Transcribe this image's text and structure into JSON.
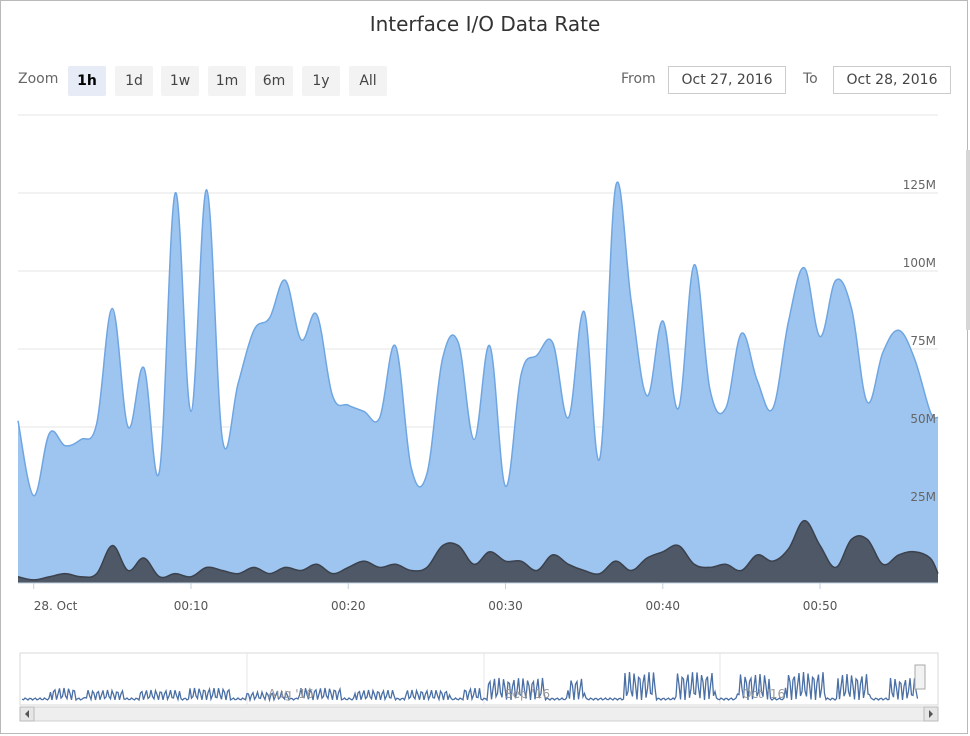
{
  "title": "Interface I/O Data Rate",
  "zoom": {
    "label": "Zoom",
    "buttons": [
      "1h",
      "1d",
      "1w",
      "1m",
      "6m",
      "1y",
      "All"
    ],
    "selected": "1h"
  },
  "range": {
    "from_label": "From",
    "from_value": "Oct 27, 2016",
    "to_label": "To",
    "to_value": "Oct 28, 2016"
  },
  "colors": {
    "in_fill": "#9ec5ef",
    "in_line": "#6fa6e2",
    "out_fill": "#4f5866",
    "out_line": "#3b414d",
    "navigator_line": "#4a6fa5"
  },
  "navigator": {
    "labels": [
      "Aug '16",
      "Sep '16",
      "Oct '16"
    ]
  },
  "chart_data": {
    "type": "area",
    "xlabel": "",
    "ylabel": "",
    "x_unit": "minutes",
    "xlim": [
      -1,
      57.5
    ],
    "ylim": [
      0,
      150
    ],
    "y_unit": "M",
    "yticks": [
      25,
      50,
      75,
      100,
      125
    ],
    "ytick_labels": [
      "25M",
      "50M",
      "75M",
      "100M",
      "125M"
    ],
    "xticks": [
      0,
      10,
      20,
      30,
      40,
      50
    ],
    "xtick_labels": [
      "28. Oct",
      "00:10",
      "00:20",
      "00:30",
      "00:40",
      "00:50"
    ],
    "grid": true,
    "series": [
      {
        "x": [
          -1,
          0,
          1,
          2,
          3,
          4,
          5,
          6,
          7,
          8,
          9,
          10,
          11,
          12,
          13,
          14,
          15,
          16,
          17,
          18,
          19,
          20,
          21,
          22,
          23,
          24,
          25,
          26,
          27,
          28,
          29,
          30,
          31,
          32,
          33,
          34,
          35,
          36,
          37,
          38,
          39,
          40,
          41,
          42,
          43,
          44,
          45,
          46,
          47,
          48,
          49,
          50,
          51,
          52,
          53,
          54,
          55,
          56,
          57,
          57.5
        ],
        "values": [
          52,
          28,
          48,
          44,
          46,
          51,
          88,
          50,
          69,
          36,
          125,
          55,
          126,
          46,
          64,
          81,
          85,
          97,
          78,
          86,
          60,
          57,
          55,
          53,
          76,
          37,
          35,
          72,
          77,
          46,
          76,
          31,
          67,
          73,
          77,
          53,
          87,
          40,
          127,
          90,
          60,
          84,
          56,
          102,
          62,
          56,
          80,
          65,
          56,
          84,
          101,
          79,
          97,
          88,
          58,
          74,
          81,
          72,
          55,
          53
        ]
      },
      {
        "x": [
          -1,
          0,
          1,
          2,
          3,
          4,
          5,
          6,
          7,
          8,
          9,
          10,
          11,
          12,
          13,
          14,
          15,
          16,
          17,
          18,
          19,
          20,
          21,
          22,
          23,
          24,
          25,
          26,
          27,
          28,
          29,
          30,
          31,
          32,
          33,
          34,
          35,
          36,
          37,
          38,
          39,
          40,
          41,
          42,
          43,
          44,
          45,
          46,
          47,
          48,
          49,
          50,
          51,
          52,
          53,
          54,
          55,
          56,
          57,
          57.5
        ],
        "values": [
          2,
          1,
          2,
          3,
          2,
          3,
          12,
          4,
          8,
          2,
          3,
          2,
          5,
          4,
          3,
          5,
          3,
          5,
          4,
          6,
          3,
          5,
          7,
          5,
          6,
          4,
          5,
          12,
          12,
          6,
          10,
          7,
          7,
          4,
          9,
          6,
          4,
          3,
          7,
          4,
          8,
          10,
          12,
          6,
          5,
          6,
          4,
          9,
          7,
          11,
          20,
          12,
          5,
          14,
          14,
          6,
          9,
          10,
          8,
          3
        ]
      }
    ]
  }
}
